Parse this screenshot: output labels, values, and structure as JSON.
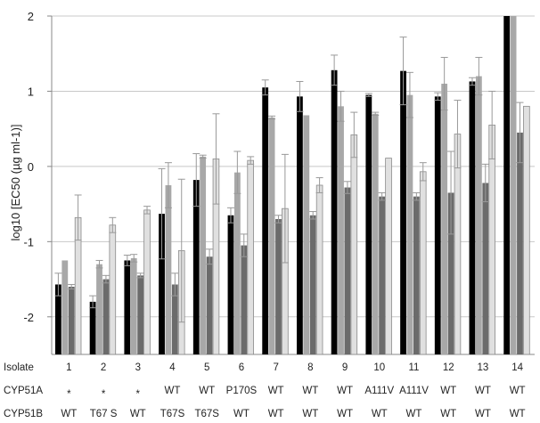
{
  "chart_data": {
    "type": "bar",
    "title": "",
    "ylabel": "log10 [EC50 (µg ml-1)]",
    "ylim": [
      -2.5,
      2
    ],
    "yticks": [
      -2,
      -1,
      0,
      1,
      2
    ],
    "grid": true,
    "categories": [
      "1",
      "2",
      "3",
      "4",
      "5",
      "6",
      "7",
      "8",
      "9",
      "10",
      "11",
      "12",
      "13",
      "14"
    ],
    "series": [
      {
        "color": "#000000",
        "values": [
          -1.57,
          -1.8,
          -1.25,
          -0.63,
          -0.18,
          -0.65,
          1.05,
          0.93,
          1.28,
          0.95,
          1.27,
          0.93,
          1.13,
          2.0
        ],
        "errors": [
          0.15,
          0.08,
          0.07,
          0.6,
          0.35,
          0.1,
          0.1,
          0.2,
          0.2,
          0.02,
          0.45,
          0.05,
          0.05,
          0
        ]
      },
      {
        "color": "#a8a8a8",
        "values": [
          -1.25,
          -1.3,
          -1.22,
          -0.25,
          0.13,
          -0.08,
          0.65,
          0.68,
          0.8,
          0.7,
          0.95,
          1.1,
          1.2,
          2.0
        ],
        "errors": [
          0,
          0.05,
          0.05,
          0.3,
          0.02,
          0.28,
          0.02,
          0.0,
          0.2,
          0.02,
          0.3,
          0.35,
          0.25,
          0
        ]
      },
      {
        "color": "#6b6b6b",
        "values": [
          -1.6,
          -1.5,
          -1.45,
          -1.57,
          -1.2,
          -1.05,
          -0.7,
          -0.65,
          -0.28,
          -0.4,
          -0.4,
          -0.35,
          -0.22,
          0.45
        ],
        "errors": [
          0.03,
          0.05,
          0.03,
          0.15,
          0.1,
          0.15,
          0.05,
          0.05,
          0.08,
          0.05,
          0.05,
          0.55,
          0.25,
          0.4
        ]
      },
      {
        "color": "#e0e0e0",
        "values": [
          -0.68,
          -0.78,
          -0.58,
          -1.12,
          0.1,
          0.08,
          -0.56,
          -0.25,
          0.42,
          0.11,
          -0.07,
          0.43,
          0.55,
          0.8
        ],
        "errors": [
          0.3,
          0.1,
          0.05,
          0.95,
          0.6,
          0.05,
          0.72,
          0.1,
          0.3,
          0.0,
          0.12,
          0.45,
          0.45,
          0.0
        ]
      }
    ]
  },
  "labels": {
    "row1": {
      "label": "Isolate",
      "values": [
        "1",
        "2",
        "3",
        "4",
        "5",
        "6",
        "7",
        "8",
        "9",
        "10",
        "11",
        "12",
        "13",
        "14"
      ]
    },
    "row2": {
      "label": "CYP51A",
      "values": [
        "*",
        "*",
        "*",
        "WT",
        "WT",
        "P170S",
        "WT",
        "WT",
        "WT",
        "A111V",
        "A111V",
        "WT",
        "WT",
        "WT"
      ]
    },
    "row3": {
      "label": "CYP51B",
      "values": [
        "WT",
        "T67 S",
        "WT",
        "T67S",
        "T67S",
        "WT",
        "WT",
        "WT",
        "WT",
        "WT",
        "WT",
        "WT",
        "WT",
        "WT"
      ]
    }
  }
}
